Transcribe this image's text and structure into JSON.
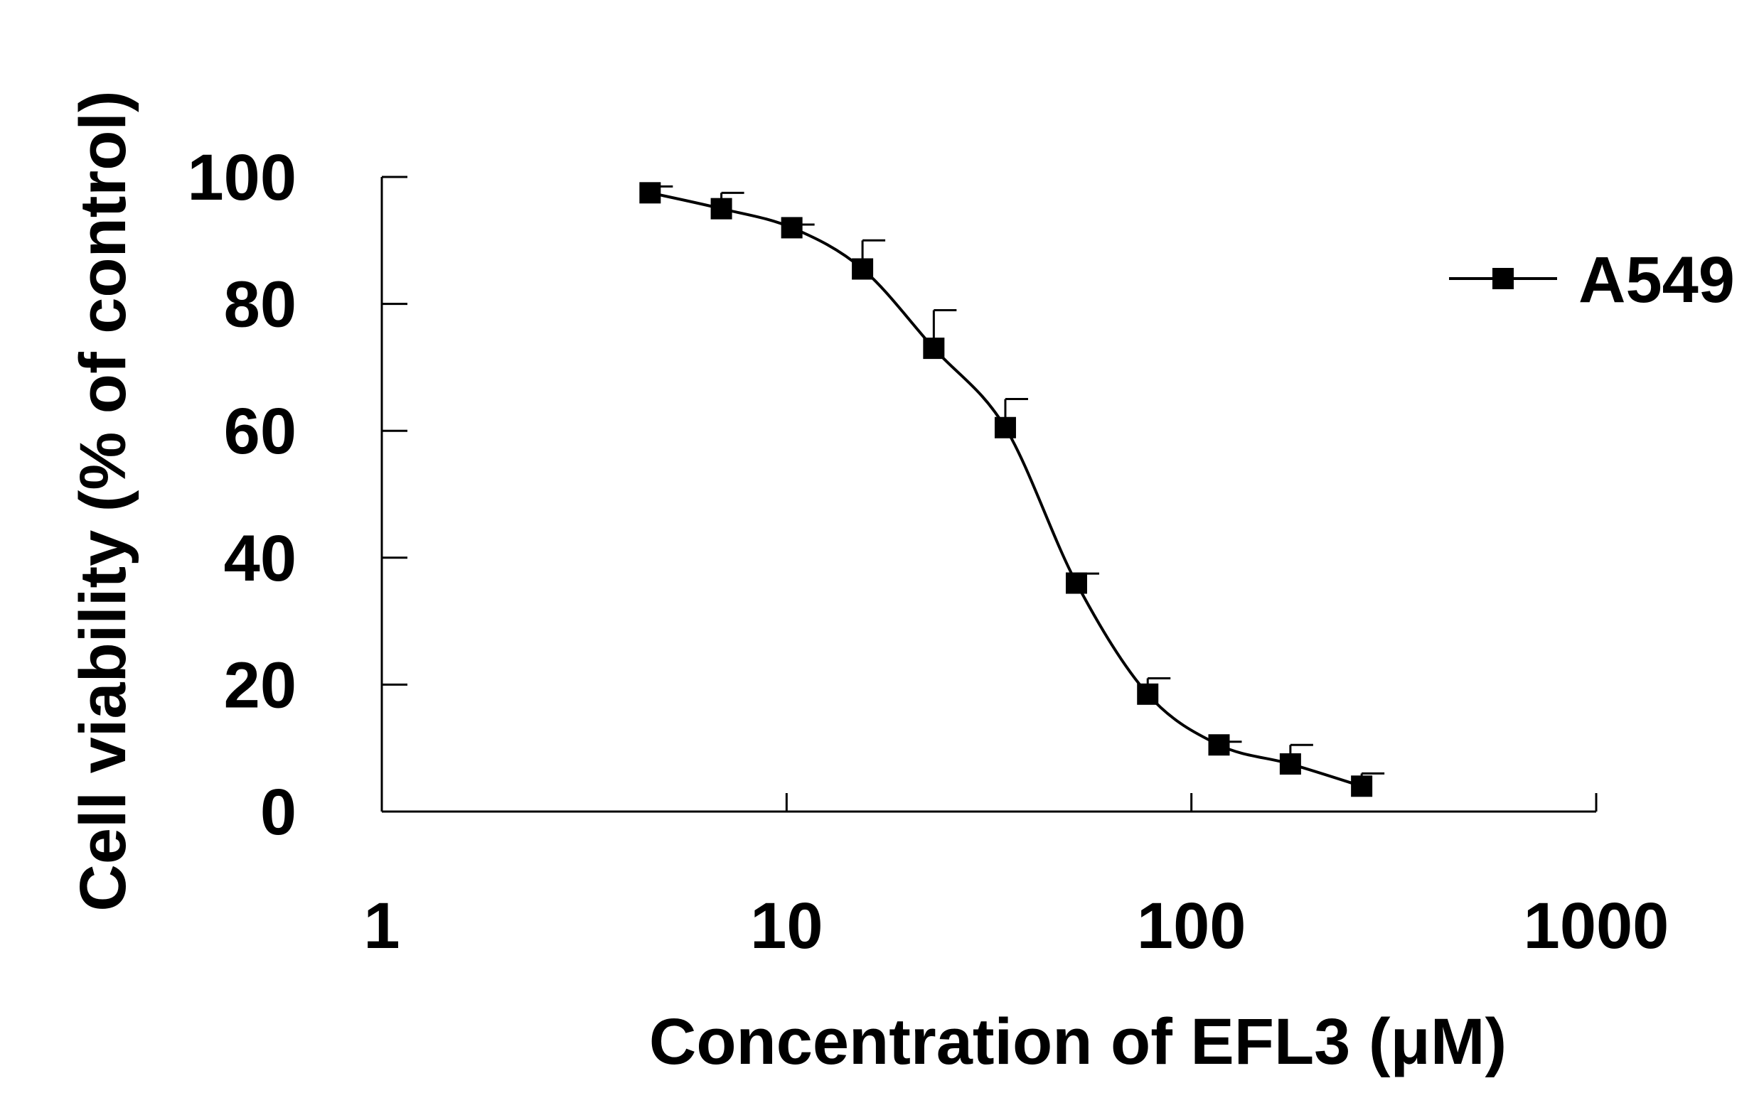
{
  "chart_data": {
    "type": "line",
    "xlabel": "Concentration of EFL3 (μM)",
    "ylabel": "Cell viability (% of control)",
    "x_scale": "log",
    "xlim": [
      1,
      1000
    ],
    "ylim": [
      0,
      100
    ],
    "x_ticks": [
      1,
      10,
      100,
      1000
    ],
    "x_tick_labels": [
      "1",
      "10",
      "100",
      "1000"
    ],
    "y_ticks": [
      0,
      20,
      40,
      60,
      80,
      100
    ],
    "y_tick_labels": [
      "0",
      "20",
      "40",
      "60",
      "80",
      "100"
    ],
    "grid": false,
    "legend_position": "top-right",
    "series": [
      {
        "name": "A549",
        "color": "#000000",
        "marker": "square",
        "x": [
          4.6,
          6.9,
          10.3,
          15.4,
          23.1,
          34.7,
          52.0,
          78.0,
          117.0,
          175.6,
          263.4
        ],
        "y": [
          97.5,
          95.0,
          92.0,
          85.5,
          73.0,
          60.5,
          36.0,
          18.5,
          10.5,
          7.5,
          4.0
        ],
        "error": [
          1.0,
          2.5,
          0.5,
          4.5,
          6.0,
          4.5,
          1.5,
          2.5,
          0.5,
          3.0,
          2.0
        ]
      }
    ]
  }
}
